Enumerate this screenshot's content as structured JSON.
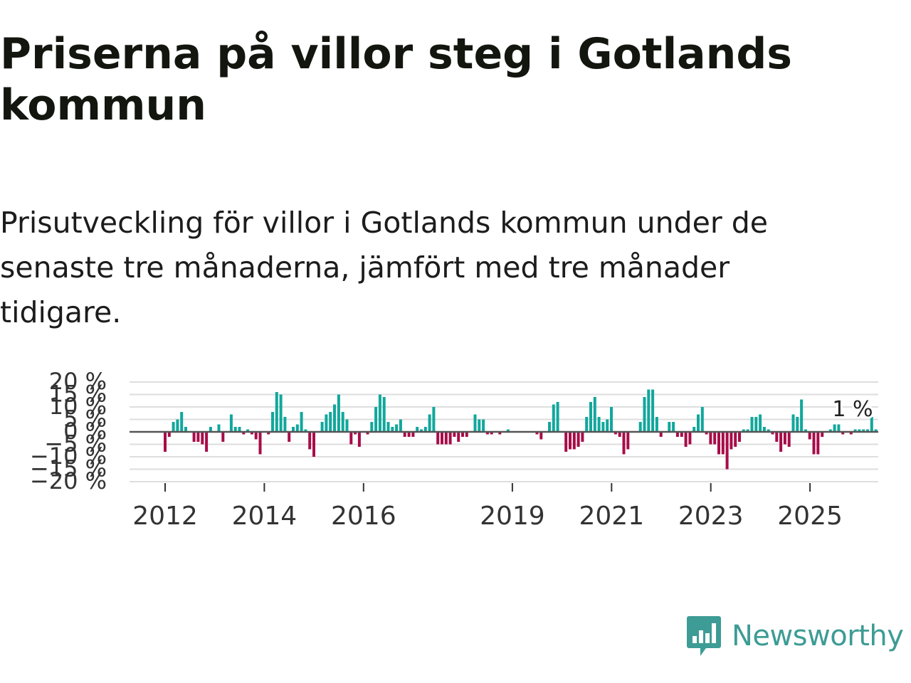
{
  "header": {
    "title": "Priserna på villor steg i Gotlands kommun",
    "subtitle": "Prisutveckling för villor i Gotlands kommun under de senaste tre månaderna, jämfört med tre månader tidigare."
  },
  "brand": {
    "name": "Newsworthy",
    "icon": "newsworthy-logo-icon"
  },
  "colors": {
    "positive": "#11a79c",
    "negative": "#a80c49",
    "zero_line": "#555555",
    "grid": "#dedede"
  },
  "chart_data": {
    "type": "bar",
    "title": "Priserna på villor steg i Gotlands kommun",
    "xlabel": "",
    "ylabel": "",
    "ylim": [
      -20,
      20
    ],
    "y_ticks": [
      "20 %",
      "15 %",
      "10 %",
      "5 %",
      "0 %",
      "−5 %",
      "−10 %",
      "−15 %",
      "−20 %"
    ],
    "y_tick_values": [
      20,
      15,
      10,
      5,
      0,
      -5,
      -10,
      -15,
      -20
    ],
    "x_ticks": [
      "2012",
      "2014",
      "2016",
      "2019",
      "2021",
      "2023",
      "2025"
    ],
    "x_tick_values": [
      2012,
      2014,
      2016,
      2019,
      2021,
      2023,
      2025
    ],
    "x_start": 2012,
    "x_end": 2026.3,
    "annotation": {
      "text": "1 %",
      "index": 165
    },
    "series": [
      {
        "name": "Prisutveckling",
        "start": 2012.0,
        "step": 0.0833,
        "values": [
          -8,
          -2,
          4,
          5,
          8,
          2,
          0,
          -4,
          -4,
          -5,
          -8,
          2,
          0,
          3,
          -4,
          0,
          7,
          2,
          2,
          -1,
          1,
          -1,
          -3,
          -9,
          0,
          -1,
          8,
          16,
          15,
          6,
          -4,
          2,
          3,
          8,
          1,
          -7,
          -10,
          0,
          4,
          7,
          8,
          11,
          15,
          8,
          5,
          -5,
          -1,
          -6,
          0,
          -1,
          4,
          10,
          15,
          14,
          4,
          2,
          3,
          5,
          -2,
          -2,
          -2,
          2,
          1,
          2,
          7,
          10,
          -5,
          -5,
          -5,
          -5,
          -2,
          -4,
          -2,
          -2,
          0,
          7,
          5,
          5,
          -1,
          -1,
          0,
          -1,
          0,
          1,
          0,
          0,
          0,
          0,
          0,
          0,
          -1,
          -3,
          0,
          4,
          11,
          12,
          0,
          -8,
          -7,
          -7,
          -6,
          -4,
          6,
          12,
          14,
          6,
          4,
          5,
          10,
          -1,
          -2,
          -9,
          -7,
          0,
          0,
          4,
          14,
          17,
          17,
          6,
          -2,
          0,
          4,
          4,
          -2,
          -2,
          -6,
          -5,
          2,
          7,
          10,
          -1,
          -5,
          -5,
          -9,
          -9,
          -15,
          -7,
          -6,
          -4,
          1,
          1,
          6,
          6,
          7,
          2,
          1,
          -1,
          -4,
          -8,
          -5,
          -6,
          7,
          6,
          13,
          1,
          -3,
          -9,
          -9,
          -2,
          0,
          1,
          3,
          3,
          -1,
          0,
          -1,
          1,
          1,
          1,
          1,
          6,
          1
        ]
      }
    ]
  }
}
